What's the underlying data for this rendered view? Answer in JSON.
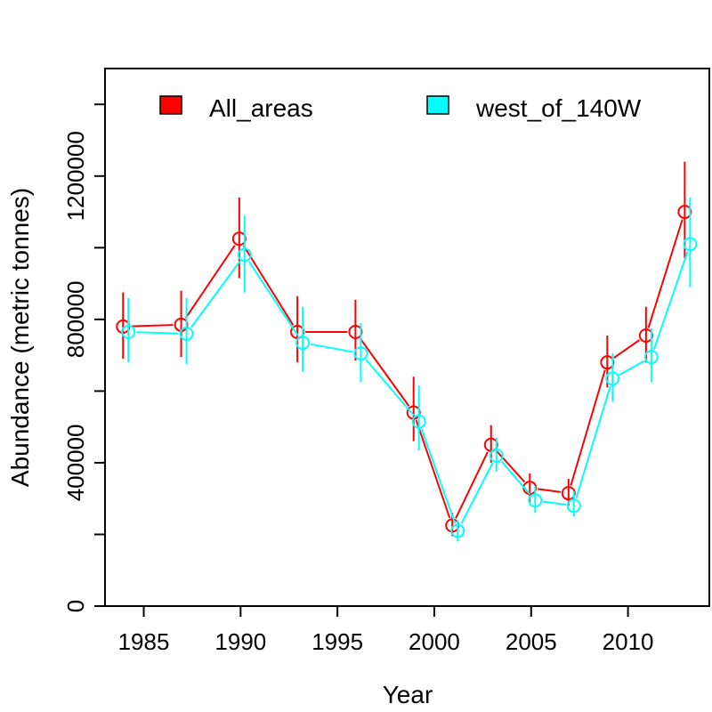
{
  "chart_data": {
    "type": "line",
    "xlabel": "Year",
    "ylabel": "Abundance (metric tonnes)",
    "xlim": [
      1983.0,
      2014.2
    ],
    "ylim": [
      0,
      1500000
    ],
    "x_ticks": [
      "1985",
      "1990",
      "1995",
      "2000",
      "2005",
      "2010"
    ],
    "y_ticks": [
      "0",
      "400000",
      "800000",
      "1200000"
    ],
    "grid": false,
    "legend_position": "top",
    "series": [
      {
        "name": "All_areas",
        "color": "#ff0000",
        "points": [
          {
            "x": 1984,
            "y": 780000,
            "lo": 690000,
            "hi": 875000
          },
          {
            "x": 1987,
            "y": 785000,
            "lo": 695000,
            "hi": 880000
          },
          {
            "x": 1990,
            "y": 1025000,
            "lo": 915000,
            "hi": 1140000
          },
          {
            "x": 1993,
            "y": 765000,
            "lo": 680000,
            "hi": 865000
          },
          {
            "x": 1996,
            "y": 765000,
            "lo": 685000,
            "hi": 855000
          },
          {
            "x": 1999,
            "y": 540000,
            "lo": 460000,
            "hi": 640000
          },
          {
            "x": 2001,
            "y": 225000,
            "lo": 195000,
            "hi": 260000
          },
          {
            "x": 2003,
            "y": 450000,
            "lo": 400000,
            "hi": 505000
          },
          {
            "x": 2005,
            "y": 330000,
            "lo": 290000,
            "hi": 370000
          },
          {
            "x": 2007,
            "y": 315000,
            "lo": 280000,
            "hi": 355000
          },
          {
            "x": 2009,
            "y": 680000,
            "lo": 610000,
            "hi": 755000
          },
          {
            "x": 2011,
            "y": 755000,
            "lo": 680000,
            "hi": 835000
          },
          {
            "x": 2013,
            "y": 1100000,
            "lo": 970000,
            "hi": 1240000
          }
        ]
      },
      {
        "name": "west_of_140W",
        "color": "#00ffff",
        "points": [
          {
            "x": 1984,
            "y": 765000,
            "lo": 680000,
            "hi": 860000
          },
          {
            "x": 1987,
            "y": 760000,
            "lo": 675000,
            "hi": 860000
          },
          {
            "x": 1990,
            "y": 980000,
            "lo": 875000,
            "hi": 1090000
          },
          {
            "x": 1993,
            "y": 735000,
            "lo": 655000,
            "hi": 835000
          },
          {
            "x": 1996,
            "y": 705000,
            "lo": 625000,
            "hi": 790000
          },
          {
            "x": 1999,
            "y": 515000,
            "lo": 435000,
            "hi": 615000
          },
          {
            "x": 2001,
            "y": 210000,
            "lo": 180000,
            "hi": 240000
          },
          {
            "x": 2003,
            "y": 420000,
            "lo": 375000,
            "hi": 470000
          },
          {
            "x": 2005,
            "y": 295000,
            "lo": 260000,
            "hi": 335000
          },
          {
            "x": 2007,
            "y": 280000,
            "lo": 250000,
            "hi": 320000
          },
          {
            "x": 2009,
            "y": 635000,
            "lo": 570000,
            "hi": 705000
          },
          {
            "x": 2011,
            "y": 695000,
            "lo": 625000,
            "hi": 775000
          },
          {
            "x": 2013,
            "y": 1010000,
            "lo": 890000,
            "hi": 1140000
          }
        ]
      }
    ]
  }
}
